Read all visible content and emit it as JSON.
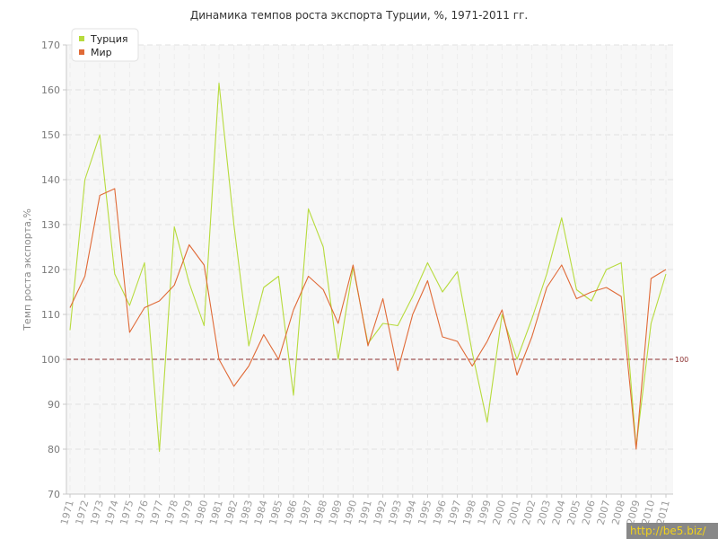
{
  "chart_data": {
    "type": "line",
    "title": "Динамика темпов роста экспорта Турции, %, 1971-2011 гг.",
    "ylabel": "Темп роста экспорта,%",
    "xlabel": "",
    "ylim": [
      70,
      170
    ],
    "yticks": [
      70,
      80,
      90,
      100,
      110,
      120,
      130,
      140,
      150,
      160,
      170
    ],
    "grid": true,
    "legend_position": "top-left",
    "x": [
      "1971",
      "1972",
      "1973",
      "1974",
      "1975",
      "1976",
      "1977",
      "1978",
      "1979",
      "1980",
      "1981",
      "1982",
      "1983",
      "1984",
      "1985",
      "1986",
      "1987",
      "1988",
      "1989",
      "1990",
      "1991",
      "1992",
      "1993",
      "1994",
      "1995",
      "1996",
      "1997",
      "1998",
      "1999",
      "2000",
      "2001",
      "2002",
      "2003",
      "2004",
      "2005",
      "2006",
      "2007",
      "2008",
      "2009",
      "2010",
      "2011"
    ],
    "series": [
      {
        "name": "Турция",
        "color": "#b7db3d",
        "values": [
          106.5,
          140.0,
          150.0,
          119.0,
          112.0,
          121.5,
          79.5,
          129.5,
          117.0,
          107.5,
          161.5,
          130.0,
          103.0,
          116.0,
          118.5,
          92.0,
          133.5,
          125.0,
          100.0,
          120.5,
          103.5,
          108.0,
          107.5,
          114.0,
          121.5,
          115.0,
          119.5,
          101.5,
          86.0,
          110.0,
          100.0,
          109.0,
          119.0,
          131.5,
          115.5,
          113.0,
          120.0,
          121.5,
          80.5,
          108.0,
          119.0
        ]
      },
      {
        "name": "Мир",
        "color": "#e06a37",
        "values": [
          111.5,
          118.5,
          136.5,
          138.0,
          106.0,
          111.5,
          113.0,
          116.5,
          125.5,
          121.0,
          100.0,
          94.0,
          98.5,
          105.5,
          100.0,
          111.0,
          118.5,
          115.5,
          108.0,
          121.0,
          103.0,
          113.5,
          97.5,
          110.0,
          117.5,
          105.0,
          104.0,
          98.5,
          104.0,
          111.0,
          96.5,
          105.0,
          116.0,
          121.0,
          113.5,
          115.0,
          116.0,
          114.0,
          80.0,
          118.0,
          120.0
        ]
      }
    ],
    "reference_line": {
      "value": 100,
      "label": "100",
      "color": "#8b2e2e"
    }
  },
  "watermark": "http://be5.biz/"
}
